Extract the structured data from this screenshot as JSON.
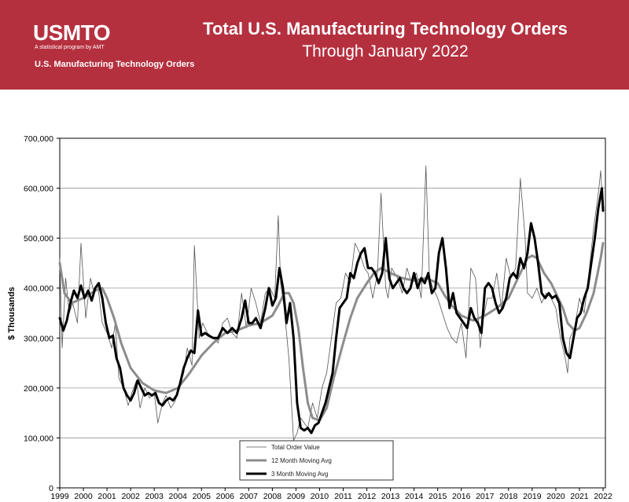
{
  "header": {
    "logo": "USMTO",
    "tagline": "A statistical program by AMT",
    "subtitle": "U.S. Manufacturing Technology Orders",
    "title": "Total U.S. Manufacturing Technology Orders",
    "title_line2": "Through January 2022",
    "banner_color": "#b5303f"
  },
  "chart_data": {
    "type": "line",
    "title": "Total U.S. Manufacturing Technology Orders",
    "subtitle": "Through January 2022",
    "xlabel": "",
    "ylabel": "$ Thousands",
    "ylim": [
      0,
      700000
    ],
    "y_ticks": [
      "0",
      "100,000",
      "200,000",
      "300,000",
      "400,000",
      "500,000",
      "600,000",
      "700,000"
    ],
    "x_ticks": [
      "1999",
      "2000",
      "2001",
      "2002",
      "2003",
      "2004",
      "2005",
      "2006",
      "2007",
      "2008",
      "2009",
      "2010",
      "2011",
      "2012",
      "2013",
      "2014",
      "2015",
      "2016",
      "2017",
      "2018",
      "2019",
      "2020",
      "2021",
      "2022"
    ],
    "grid": true,
    "legend": {
      "placement": "bottom-center",
      "entries": [
        "Total Order Value",
        "12 Month Moving Avg",
        "3 Month Moving Avg"
      ]
    },
    "series": [
      {
        "name": "Total Order Value",
        "color": "#555555",
        "x": [
          1999.0,
          1999.1,
          1999.25,
          1999.4,
          1999.55,
          1999.75,
          1999.9,
          2000.1,
          2000.3,
          2000.45,
          2000.6,
          2000.8,
          2001.0,
          2001.2,
          2001.35,
          2001.5,
          2001.7,
          2001.9,
          2002.05,
          2002.25,
          2002.4,
          2002.6,
          2002.8,
          2003.0,
          2003.15,
          2003.35,
          2003.5,
          2003.7,
          2003.9,
          2004.05,
          2004.25,
          2004.4,
          2004.6,
          2004.7,
          2004.9,
          2005.05,
          2005.25,
          2005.5,
          2005.7,
          2005.9,
          2006.1,
          2006.3,
          2006.5,
          2006.7,
          2006.9,
          2007.1,
          2007.3,
          2007.5,
          2007.7,
          2007.9,
          2008.1,
          2008.25,
          2008.35,
          2008.5,
          2008.7,
          2008.9,
          2009.05,
          2009.2,
          2009.35,
          2009.5,
          2009.7,
          2009.9,
          2010.1,
          2010.3,
          2010.5,
          2010.7,
          2010.9,
          2011.1,
          2011.3,
          2011.5,
          2011.7,
          2011.9,
          2012.05,
          2012.25,
          2012.45,
          2012.6,
          2012.8,
          2012.9,
          2013.05,
          2013.3,
          2013.5,
          2013.7,
          2013.9,
          2014.1,
          2014.3,
          2014.5,
          2014.65,
          2014.8,
          2015.0,
          2015.2,
          2015.4,
          2015.6,
          2015.8,
          2016.0,
          2016.2,
          2016.4,
          2016.6,
          2016.8,
          2016.9,
          2017.1,
          2017.3,
          2017.5,
          2017.7,
          2017.9,
          2018.1,
          2018.3,
          2018.5,
          2018.7,
          2018.8,
          2019.0,
          2019.2,
          2019.4,
          2019.6,
          2019.8,
          2020.0,
          2020.2,
          2020.4,
          2020.5,
          2020.6,
          2020.8,
          2021.0,
          2021.2,
          2021.4,
          2021.6,
          2021.8,
          2021.9,
          2022.0
        ],
        "values": [
          460000,
          280000,
          420000,
          350000,
          370000,
          330000,
          490000,
          340000,
          420000,
          390000,
          410000,
          330000,
          310000,
          280000,
          330000,
          220000,
          200000,
          165000,
          190000,
          215000,
          160000,
          200000,
          180000,
          190000,
          130000,
          170000,
          185000,
          160000,
          175000,
          200000,
          230000,
          280000,
          245000,
          485000,
          300000,
          330000,
          310000,
          300000,
          290000,
          330000,
          340000,
          310000,
          300000,
          390000,
          320000,
          400000,
          370000,
          330000,
          390000,
          400000,
          380000,
          545000,
          410000,
          360000,
          260000,
          95000,
          110000,
          140000,
          130000,
          120000,
          170000,
          140000,
          200000,
          230000,
          300000,
          370000,
          380000,
          430000,
          410000,
          490000,
          470000,
          440000,
          430000,
          380000,
          430000,
          590000,
          400000,
          380000,
          440000,
          420000,
          390000,
          440000,
          410000,
          430000,
          380000,
          645000,
          420000,
          400000,
          380000,
          350000,
          320000,
          300000,
          290000,
          330000,
          260000,
          440000,
          420000,
          280000,
          330000,
          380000,
          380000,
          430000,
          360000,
          460000,
          420000,
          440000,
          620000,
          500000,
          390000,
          380000,
          400000,
          370000,
          390000,
          380000,
          360000,
          300000,
          260000,
          230000,
          300000,
          320000,
          380000,
          350000,
          430000,
          520000,
          590000,
          635000,
          555000
        ]
      },
      {
        "name": "12 Month Moving Avg",
        "color": "#8c8c8c",
        "x": [
          1999.0,
          1999.2,
          1999.5,
          2000.0,
          2000.5,
          2000.8,
          2001.0,
          2001.3,
          2001.6,
          2002.0,
          2002.5,
          2003.0,
          2003.5,
          2004.0,
          2004.5,
          2005.0,
          2005.5,
          2006.0,
          2006.5,
          2007.0,
          2007.5,
          2008.0,
          2008.3,
          2008.5,
          2008.7,
          2008.9,
          2009.1,
          2009.3,
          2009.5,
          2009.7,
          2010.0,
          2010.3,
          2010.6,
          2011.0,
          2011.3,
          2011.6,
          2012.0,
          2012.3,
          2012.6,
          2013.0,
          2013.5,
          2014.0,
          2014.5,
          2015.0,
          2015.3,
          2015.6,
          2016.0,
          2016.5,
          2017.0,
          2017.5,
          2018.0,
          2018.5,
          2018.8,
          2019.0,
          2019.2,
          2019.5,
          2019.8,
          2020.0,
          2020.3,
          2020.5,
          2020.8,
          2021.0,
          2021.3,
          2021.6,
          2021.9,
          2022.0
        ],
        "values": [
          450000,
          390000,
          370000,
          380000,
          395000,
          400000,
          380000,
          340000,
          290000,
          240000,
          210000,
          195000,
          190000,
          200000,
          230000,
          265000,
          290000,
          310000,
          315000,
          325000,
          330000,
          345000,
          370000,
          390000,
          390000,
          370000,
          320000,
          240000,
          170000,
          140000,
          135000,
          160000,
          220000,
          290000,
          340000,
          380000,
          410000,
          430000,
          440000,
          430000,
          420000,
          415000,
          420000,
          410000,
          385000,
          365000,
          345000,
          335000,
          345000,
          360000,
          380000,
          430000,
          460000,
          465000,
          460000,
          430000,
          410000,
          390000,
          360000,
          330000,
          315000,
          320000,
          350000,
          390000,
          460000,
          490000
        ]
      },
      {
        "name": "3 Month Moving Avg",
        "color": "#000000",
        "x": [
          1999.0,
          1999.15,
          1999.3,
          1999.45,
          1999.6,
          1999.75,
          1999.9,
          2000.05,
          2000.2,
          2000.35,
          2000.5,
          2000.65,
          2000.8,
          2000.95,
          2001.1,
          2001.25,
          2001.4,
          2001.55,
          2001.7,
          2001.85,
          2002.0,
          2002.15,
          2002.3,
          2002.45,
          2002.6,
          2002.75,
          2002.9,
          2003.05,
          2003.2,
          2003.35,
          2003.5,
          2003.65,
          2003.8,
          2003.95,
          2004.1,
          2004.25,
          2004.4,
          2004.55,
          2004.7,
          2004.85,
          2005.0,
          2005.15,
          2005.3,
          2005.5,
          2005.7,
          2005.9,
          2006.1,
          2006.3,
          2006.5,
          2006.7,
          2006.85,
          2007.0,
          2007.15,
          2007.3,
          2007.5,
          2007.7,
          2007.85,
          2008.0,
          2008.15,
          2008.3,
          2008.45,
          2008.6,
          2008.75,
          2008.9,
          2009.05,
          2009.2,
          2009.35,
          2009.5,
          2009.65,
          2009.8,
          2009.95,
          2010.1,
          2010.25,
          2010.4,
          2010.55,
          2010.7,
          2010.85,
          2011.0,
          2011.15,
          2011.3,
          2011.45,
          2011.6,
          2011.75,
          2011.9,
          2012.05,
          2012.2,
          2012.35,
          2012.5,
          2012.65,
          2012.8,
          2012.95,
          2013.1,
          2013.25,
          2013.4,
          2013.55,
          2013.7,
          2013.85,
          2014.0,
          2014.15,
          2014.3,
          2014.45,
          2014.6,
          2014.75,
          2014.9,
          2015.05,
          2015.2,
          2015.35,
          2015.5,
          2015.65,
          2015.8,
          2015.95,
          2016.1,
          2016.25,
          2016.4,
          2016.55,
          2016.7,
          2016.85,
          2017.0,
          2017.15,
          2017.3,
          2017.45,
          2017.6,
          2017.75,
          2017.9,
          2018.05,
          2018.2,
          2018.35,
          2018.5,
          2018.65,
          2018.8,
          2018.95,
          2019.1,
          2019.25,
          2019.4,
          2019.55,
          2019.7,
          2019.85,
          2020.0,
          2020.15,
          2020.3,
          2020.45,
          2020.6,
          2020.75,
          2020.9,
          2021.05,
          2021.2,
          2021.35,
          2021.5,
          2021.65,
          2021.8,
          2021.95,
          2022.0
        ],
        "values": [
          340000,
          315000,
          335000,
          370000,
          395000,
          380000,
          405000,
          380000,
          395000,
          375000,
          400000,
          410000,
          380000,
          330000,
          300000,
          305000,
          260000,
          240000,
          200000,
          185000,
          175000,
          190000,
          215000,
          200000,
          185000,
          190000,
          185000,
          190000,
          170000,
          165000,
          175000,
          180000,
          175000,
          185000,
          210000,
          240000,
          260000,
          275000,
          270000,
          355000,
          305000,
          310000,
          305000,
          300000,
          300000,
          320000,
          310000,
          320000,
          310000,
          340000,
          375000,
          330000,
          330000,
          340000,
          320000,
          360000,
          400000,
          365000,
          380000,
          440000,
          400000,
          330000,
          370000,
          300000,
          170000,
          120000,
          115000,
          120000,
          110000,
          125000,
          130000,
          150000,
          170000,
          200000,
          230000,
          300000,
          360000,
          370000,
          380000,
          430000,
          420000,
          450000,
          470000,
          480000,
          440000,
          440000,
          430000,
          410000,
          430000,
          500000,
          420000,
          400000,
          410000,
          420000,
          400000,
          390000,
          400000,
          430000,
          400000,
          420000,
          410000,
          430000,
          390000,
          400000,
          470000,
          500000,
          440000,
          360000,
          390000,
          350000,
          340000,
          330000,
          320000,
          360000,
          340000,
          330000,
          310000,
          400000,
          410000,
          400000,
          370000,
          350000,
          360000,
          380000,
          420000,
          430000,
          420000,
          460000,
          440000,
          470000,
          530000,
          500000,
          450000,
          390000,
          380000,
          390000,
          380000,
          385000,
          370000,
          300000,
          270000,
          260000,
          300000,
          340000,
          350000,
          380000,
          400000,
          450000,
          500000,
          560000,
          600000,
          555000
        ]
      }
    ]
  }
}
